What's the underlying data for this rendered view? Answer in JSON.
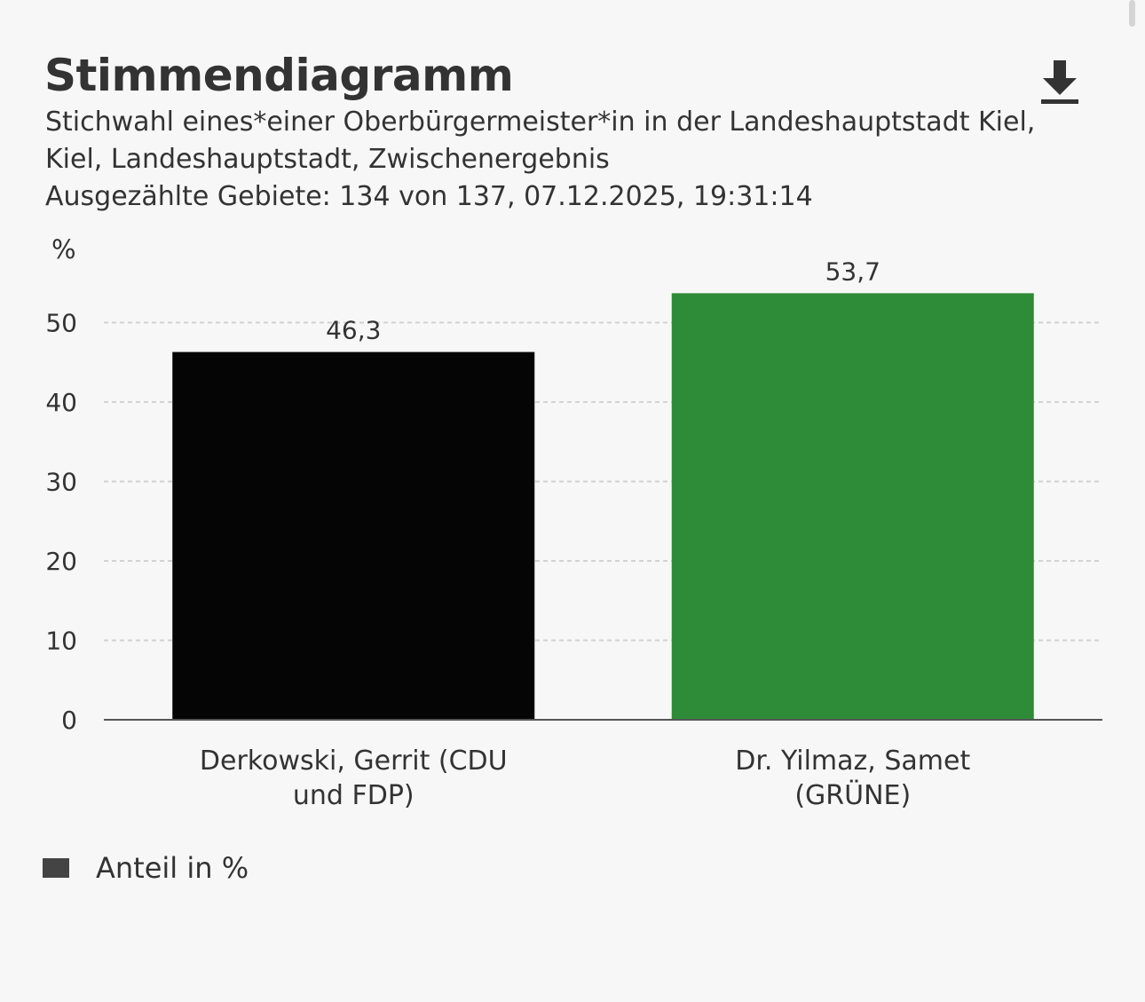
{
  "header": {
    "title": "Stimmendiagramm",
    "subtitle": "Stichwahl eines*einer Oberbürgermeister*in in der Landeshauptstadt Kiel, Kiel, Landeshauptstadt, Zwischenergebnis",
    "status": "Ausgezählte Gebiete: 134 von 137, 07.12.2025, 19:31:14",
    "download_icon": "download-icon"
  },
  "chart_data": {
    "type": "bar",
    "ylabel": "%",
    "ylim": [
      0,
      57
    ],
    "yticks": [
      0,
      10,
      20,
      30,
      40,
      50
    ],
    "grid": true,
    "categories": [
      [
        "Derkowski, Gerrit (CDU",
        "und FDP)"
      ],
      [
        "Dr. Yilmaz, Samet",
        "(GRÜNE)"
      ]
    ],
    "values": [
      46.3,
      53.7
    ],
    "value_labels": [
      "46,3",
      "53,7"
    ],
    "colors": [
      "#050505",
      "#2e8b37"
    ],
    "legend": {
      "label": "Anteil in %",
      "color": "#444444",
      "position": "bottom-left"
    }
  }
}
